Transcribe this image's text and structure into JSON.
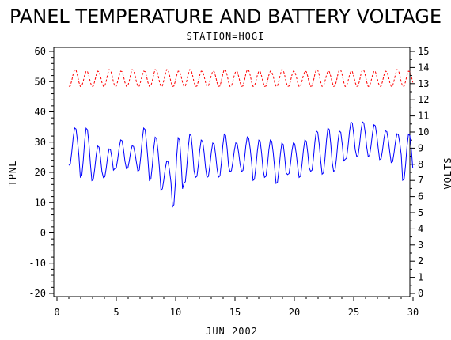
{
  "chart_data": {
    "type": "line",
    "title": "PANEL TEMPERATURE AND BATTERY VOLTAGE",
    "subtitle": "STATION=HOGI",
    "xlabel": "JUN 2002",
    "ylabel_left": "TPNL",
    "ylabel_right": "VOLTS",
    "xlim": [
      0,
      30
    ],
    "ylim_left": [
      -20,
      60
    ],
    "ylim_right": [
      0,
      15
    ],
    "x_ticks": [
      0,
      5,
      10,
      15,
      20,
      25,
      30
    ],
    "y_left_ticks": [
      -20,
      -10,
      0,
      10,
      20,
      30,
      40,
      50,
      60
    ],
    "y_right_ticks": [
      0,
      1,
      2,
      3,
      4,
      5,
      6,
      7,
      8,
      9,
      10,
      11,
      12,
      13,
      14,
      15
    ],
    "grid": false,
    "series": [
      {
        "name": "TPNL",
        "axis": "left",
        "color": "#0000ff",
        "style": "solid",
        "daily_min": [
          22,
          18,
          17,
          18,
          21,
          21,
          20,
          17,
          14,
          8,
          16,
          18,
          18,
          18,
          20,
          20,
          17,
          18,
          16,
          19,
          18,
          20,
          19,
          20,
          24,
          25,
          25,
          24,
          23,
          17
        ],
        "daily_max": [
          35,
          35,
          29,
          28,
          31,
          29,
          35,
          32,
          24,
          32,
          33,
          31,
          30,
          33,
          30,
          32,
          31,
          31,
          30,
          30,
          31,
          34,
          35,
          34,
          37,
          37,
          36,
          34,
          33,
          33
        ]
      },
      {
        "name": "VOLTS",
        "axis": "right",
        "color": "#ff0000",
        "style": "dashed",
        "daily_min": [
          12.8,
          12.8,
          12.8,
          12.8,
          12.8,
          12.8,
          12.8,
          12.8,
          12.8,
          12.8,
          12.8,
          12.8,
          12.8,
          12.8,
          12.8,
          12.8,
          12.8,
          12.8,
          12.8,
          12.8,
          12.8,
          12.8,
          12.8,
          12.8,
          12.8,
          12.8,
          12.8,
          12.8,
          12.8,
          12.8
        ],
        "daily_max": [
          13.9,
          13.8,
          13.8,
          13.9,
          13.8,
          13.9,
          13.8,
          13.9,
          13.9,
          13.8,
          13.9,
          13.8,
          13.8,
          13.9,
          13.8,
          13.9,
          13.8,
          13.8,
          13.9,
          13.8,
          13.8,
          13.9,
          13.8,
          13.9,
          13.8,
          13.9,
          13.8,
          13.8,
          13.9,
          13.8
        ]
      }
    ]
  }
}
